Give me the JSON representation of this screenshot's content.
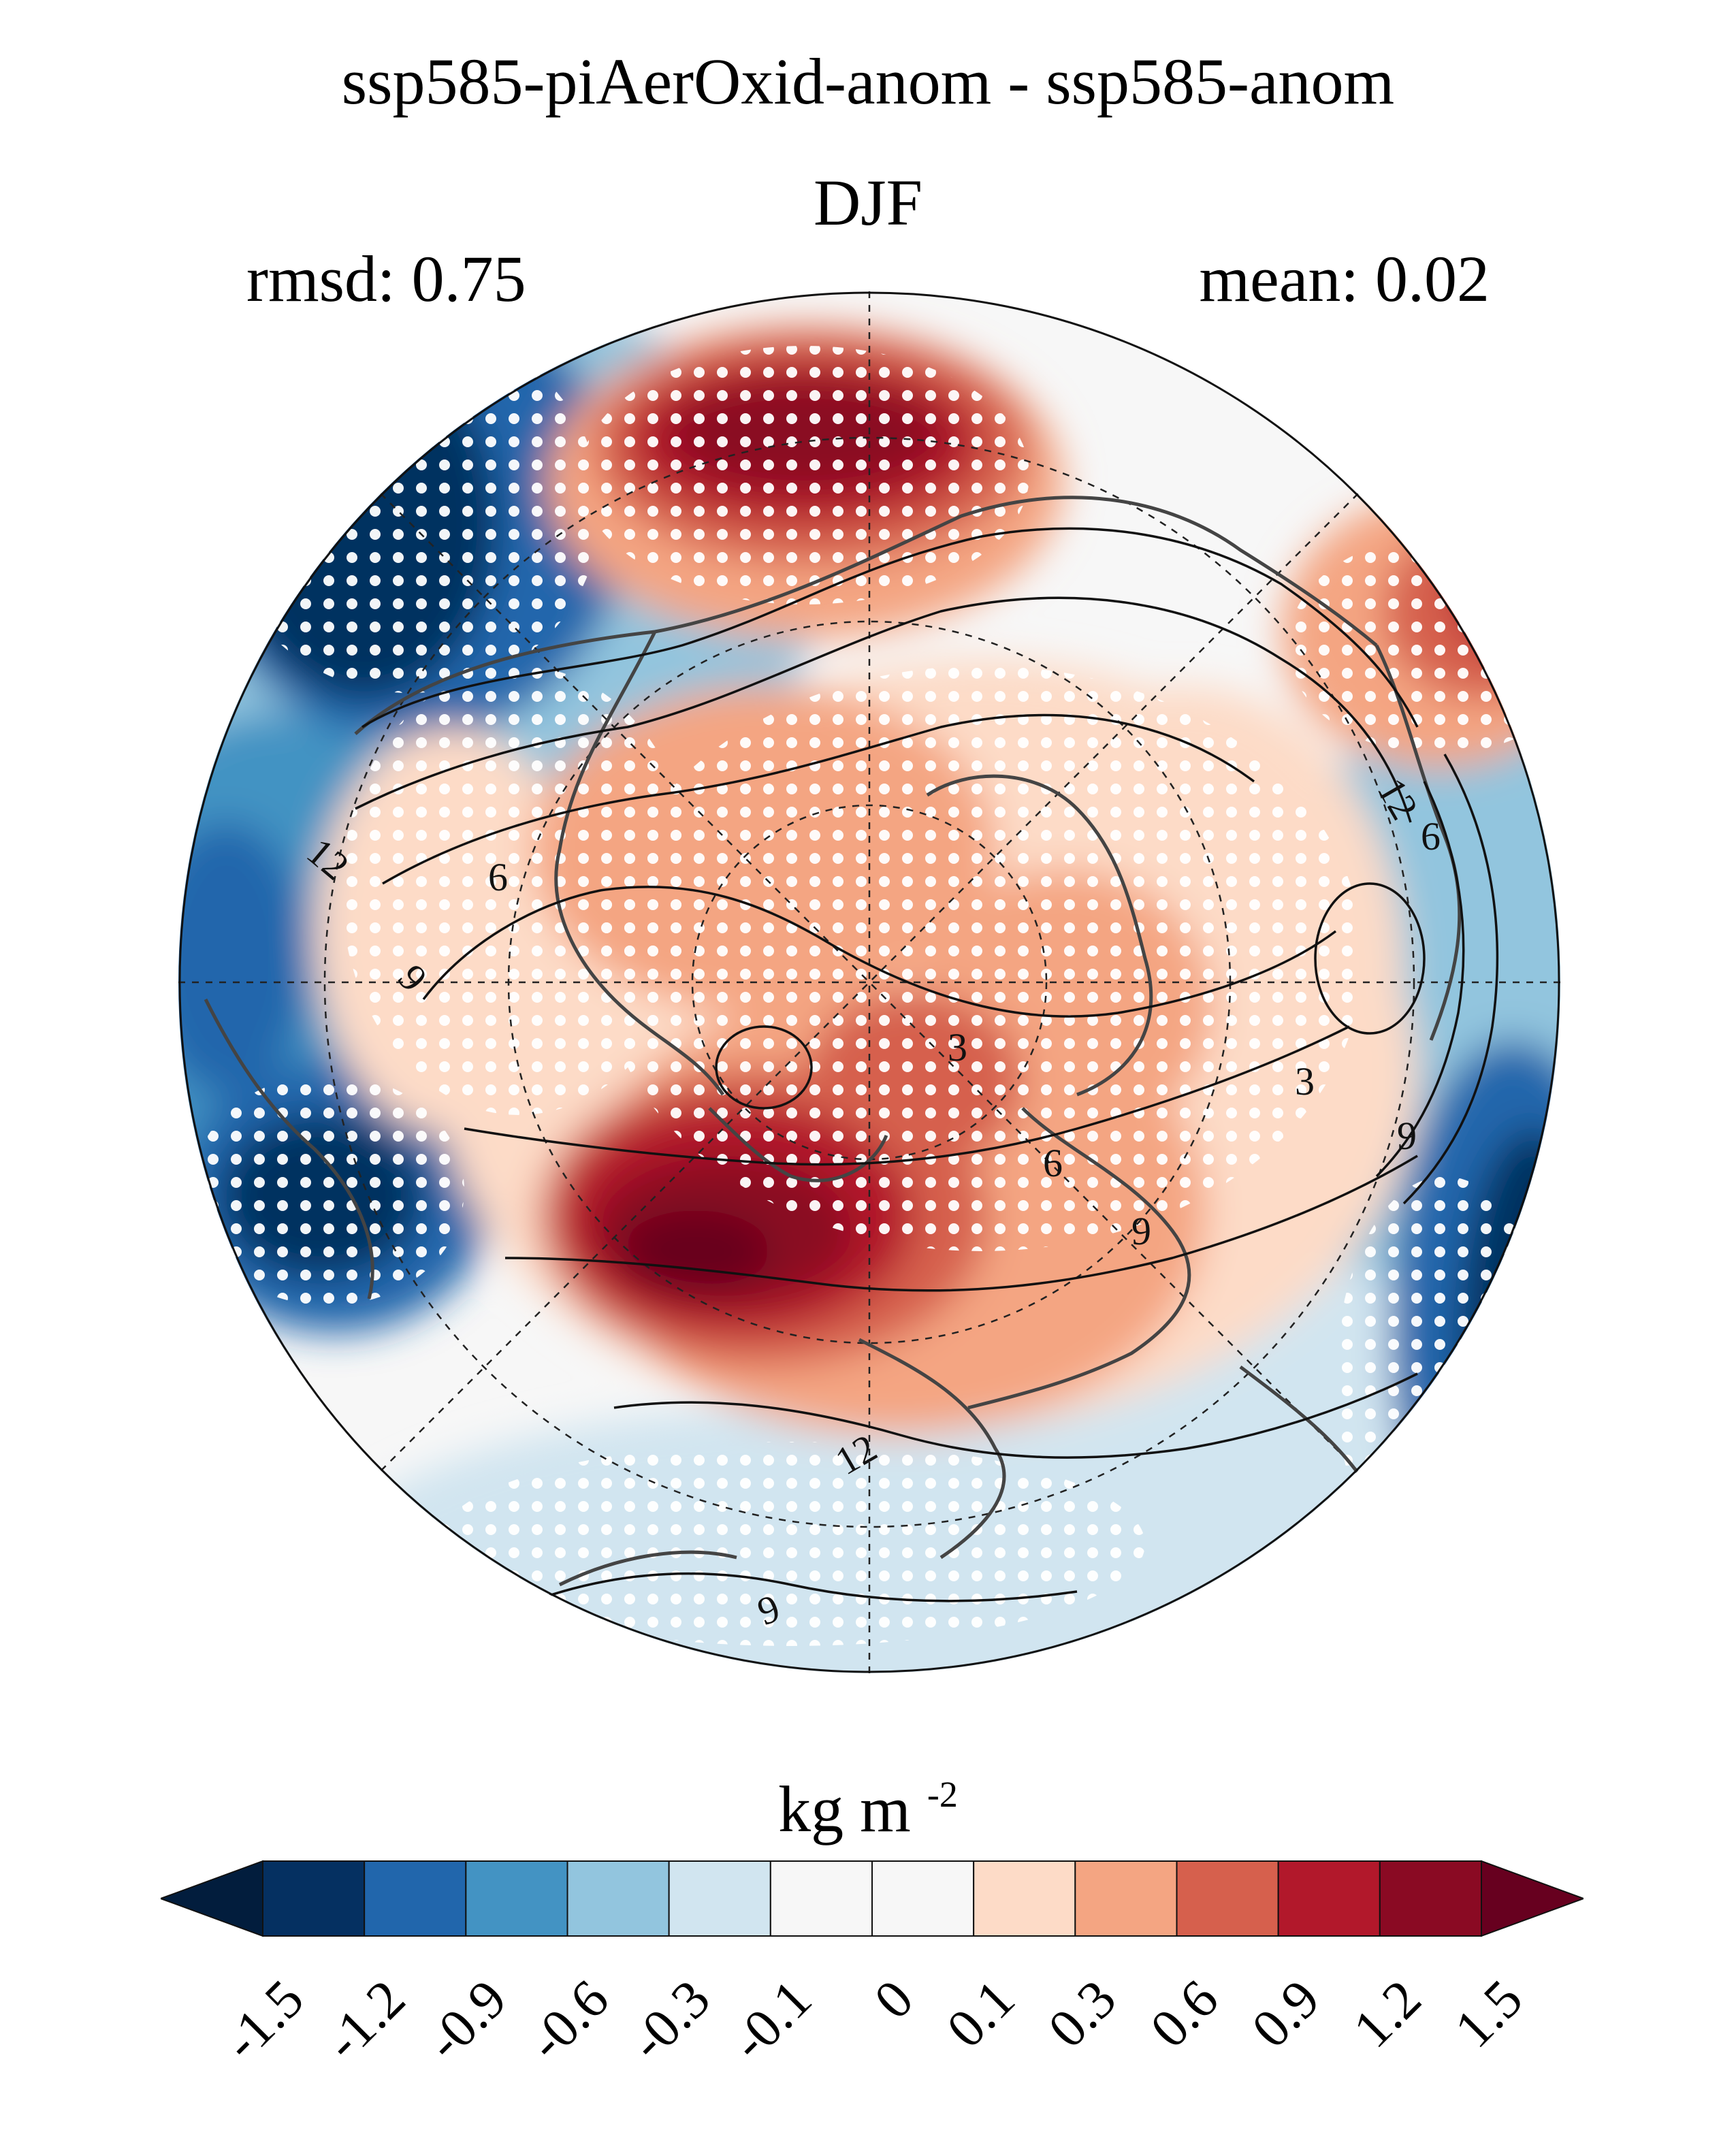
{
  "figure": {
    "title": "ssp585-piAerOxid-anom - ssp585-anom",
    "subtitle": "DJF",
    "rmsd_label": "rmsd: 0.75",
    "mean_label": "mean: 0.02"
  },
  "map": {
    "projection": "north-polar-stereographic",
    "contour_labels": [
      "12",
      "6",
      "9",
      "3",
      "6",
      "9",
      "12",
      "9",
      "3",
      "9",
      "12",
      "6"
    ],
    "stippling_color": "#ffffff"
  },
  "colorbar": {
    "units_base": "kg m",
    "units_exp": "-2",
    "levels": [
      {
        "label": "-1.5",
        "color": "#053061"
      },
      {
        "label": "-1.2",
        "color": "#2166ac"
      },
      {
        "label": "-0.9",
        "color": "#4393c3"
      },
      {
        "label": "-0.6",
        "color": "#92c5de"
      },
      {
        "label": "-0.3",
        "color": "#d1e5f0"
      },
      {
        "label": "-0.1",
        "color": "#f7f7f7"
      },
      {
        "label": "0",
        "color": "#f7f7f7"
      },
      {
        "label": "0.1",
        "color": "#fddbc7"
      },
      {
        "label": "0.3",
        "color": "#f4a582"
      },
      {
        "label": "0.6",
        "color": "#d6604d"
      },
      {
        "label": "0.9",
        "color": "#b2182b"
      },
      {
        "label": "1.2",
        "color": "#8a0a23"
      },
      {
        "label": "1.5",
        "color": "#67001f"
      }
    ],
    "under_color": "#021d3d",
    "over_color": "#67001f"
  }
}
